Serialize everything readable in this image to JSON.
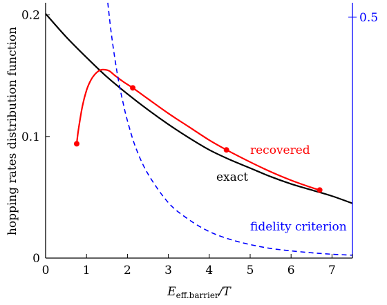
{
  "chart_data": {
    "type": "line",
    "xlabel_main": "E",
    "xlabel_sub": "eff.barrier",
    "xlabel_tail": "/T",
    "ylabel": "hopping rates distribution function",
    "xlim": [
      0,
      7.5
    ],
    "ylim": [
      0,
      0.21
    ],
    "y2lim": [
      0,
      0.53
    ],
    "x_ticks": [
      0,
      1,
      2,
      3,
      4,
      5,
      6,
      7
    ],
    "x_tick_labels": [
      "0",
      "1",
      "2",
      "3",
      "4",
      "5",
      "6",
      "7"
    ],
    "y_ticks": [
      0,
      0.1,
      0.2
    ],
    "y_tick_labels": [
      "0",
      "0.1",
      "0.2"
    ],
    "y2_ticks": [
      0.5
    ],
    "y2_tick_labels": [
      "0.5"
    ],
    "series": [
      {
        "name": "exact",
        "color": "#000000",
        "style": "solid",
        "x": [
          0,
          0.5,
          1,
          1.5,
          2,
          2.5,
          3,
          3.5,
          4,
          4.5,
          5,
          5.5,
          6,
          6.5,
          7,
          7.5
        ],
        "y": [
          0.201,
          0.182,
          0.165,
          0.149,
          0.135,
          0.122,
          0.11,
          0.099,
          0.089,
          0.081,
          0.074,
          0.067,
          0.061,
          0.056,
          0.051,
          0.045
        ]
      },
      {
        "name": "recovered",
        "color": "#ff0000",
        "style": "solid",
        "x": [
          0.76,
          0.8,
          0.9,
          1.0,
          1.1,
          1.2,
          1.3,
          1.4,
          1.55,
          1.7,
          1.9,
          2.13,
          2.5,
          3.0,
          3.5,
          4.0,
          4.42,
          5.0,
          5.5,
          6.0,
          6.5,
          6.7
        ],
        "y": [
          0.094,
          0.105,
          0.125,
          0.138,
          0.146,
          0.151,
          0.154,
          0.155,
          0.154,
          0.15,
          0.145,
          0.14,
          0.131,
          0.119,
          0.108,
          0.097,
          0.089,
          0.079,
          0.071,
          0.064,
          0.058,
          0.056
        ],
        "markers_x": [
          0.76,
          2.13,
          4.42,
          6.7
        ],
        "markers_y": [
          0.094,
          0.14,
          0.089,
          0.056
        ]
      },
      {
        "name": "fidelity criterion",
        "color": "#0000ff",
        "style": "dashed",
        "axis": "right",
        "x": [
          1.52,
          1.6,
          1.7,
          1.8,
          1.9,
          2.0,
          2.2,
          2.5,
          3.0,
          3.5,
          4.0,
          4.5,
          5.0,
          5.5,
          6.0,
          6.5,
          7.0,
          7.5
        ],
        "y": [
          0.53,
          0.47,
          0.41,
          0.36,
          0.32,
          0.285,
          0.23,
          0.175,
          0.115,
          0.08,
          0.055,
          0.039,
          0.028,
          0.02,
          0.015,
          0.011,
          0.008,
          0.006
        ]
      }
    ],
    "annotations": {
      "recovered": "recovered",
      "exact": "exact",
      "fidelity": "fidelity criterion"
    }
  }
}
